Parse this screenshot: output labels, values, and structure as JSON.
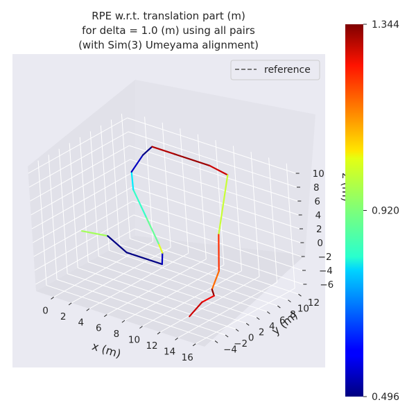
{
  "chart_data": {
    "type": "line",
    "projection": "3d",
    "title_lines": [
      "RPE w.r.t. translation part (m)",
      "for delta = 1.0 (m) using all pairs",
      "(with Sim(3) Umeyama alignment)"
    ],
    "xlabel": "x (m)",
    "ylabel": "y (m)",
    "zlabel": "z (m)",
    "xlim": [
      -2,
      17
    ],
    "ylim": [
      -6,
      13
    ],
    "zlim": [
      -7,
      11
    ],
    "x_ticks": [
      0,
      2,
      4,
      6,
      8,
      10,
      12,
      14,
      16
    ],
    "y_ticks": [
      -4,
      -2,
      0,
      2,
      4,
      6,
      8,
      10,
      12
    ],
    "z_ticks": [
      -6,
      -4,
      -2,
      0,
      2,
      4,
      6,
      8,
      10
    ],
    "x_tick_labels": [
      "0",
      "2",
      "4",
      "6",
      "8",
      "10",
      "12",
      "14",
      "16"
    ],
    "y_tick_labels": [
      "−4",
      "−2",
      "0",
      "2",
      "4",
      "6",
      "8",
      "10",
      "12"
    ],
    "z_tick_labels": [
      "−6",
      "−4",
      "−2",
      "0",
      "2",
      "4",
      "6",
      "8",
      "10"
    ],
    "grid": true,
    "legend": {
      "position": "top-right",
      "entries": [
        {
          "label": "reference",
          "style": "dashed",
          "color": "#666666"
        }
      ]
    },
    "colorbar": {
      "colormap": "jet",
      "min": 0.496,
      "max": 1.344,
      "ticks": [
        1.344,
        0.92,
        0.496
      ],
      "tick_labels": [
        "1.344",
        "0.920",
        "0.496"
      ]
    },
    "series": [
      {
        "x": [
          0.0,
          2.0,
          5.0,
          9.0,
          8.5,
          7.5,
          5.0,
          2.5,
          1.5,
          2.0,
          2.5,
          5.0,
          9.0,
          11.0,
          12.0,
          13.0,
          13.0,
          13.5,
          13.0,
          13.0
        ],
        "y": [
          0.0,
          1.5,
          0.0,
          0.0,
          1.0,
          2.0,
          4.0,
          6.0,
          7.5,
          9.0,
          10.0,
          10.0,
          10.0,
          10.0,
          6.0,
          4.0,
          2.5,
          2.0,
          0.5,
          -2.0
        ],
        "z": [
          0.0,
          -0.5,
          -1.0,
          -1.0,
          0.0,
          0.5,
          2.5,
          4.5,
          6.0,
          8.0,
          9.0,
          9.0,
          9.0,
          8.5,
          2.0,
          -2.0,
          -4.0,
          -4.5,
          -5.0,
          -6.0
        ],
        "error": [
          0.95,
          0.5,
          0.5,
          0.55,
          1.0,
          0.9,
          0.86,
          0.8,
          0.55,
          0.5,
          1.3,
          1.32,
          1.28,
          0.98,
          1.2,
          1.15,
          1.33,
          1.25,
          1.28,
          1.3
        ]
      }
    ]
  }
}
